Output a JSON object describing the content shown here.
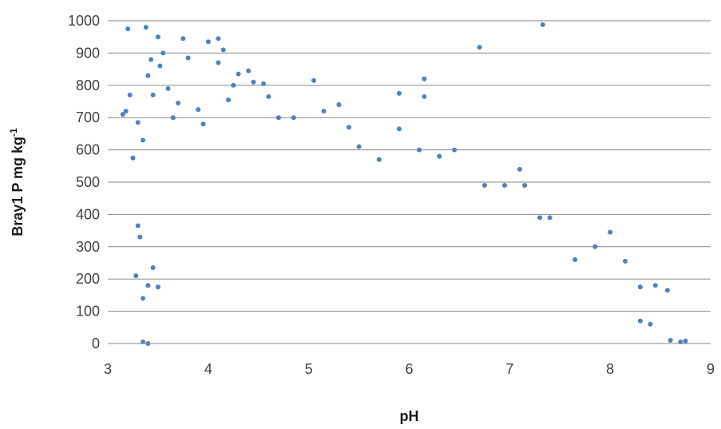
{
  "chart_data": {
    "type": "scatter",
    "title": "",
    "xlabel": "pH",
    "ylabel": {
      "main": "Bray1 P mg kg",
      "superscript": "-1"
    },
    "xlim": [
      3,
      9
    ],
    "ylim": [
      0,
      1000
    ],
    "xticks": [
      "3",
      "4",
      "5",
      "6",
      "7",
      "8",
      "9"
    ],
    "yticks": [
      "0",
      "100",
      "200",
      "300",
      "400",
      "500",
      "600",
      "700",
      "800",
      "900",
      "1000"
    ],
    "grid": {
      "horizontal": true,
      "vertical": false
    },
    "legend": "none",
    "marker_color": "#4f81bd",
    "series": [
      {
        "points": [
          [
            3.15,
            710
          ],
          [
            3.2,
            975
          ],
          [
            3.38,
            980
          ],
          [
            3.3,
            685
          ],
          [
            3.25,
            575
          ],
          [
            3.35,
            630
          ],
          [
            3.43,
            880
          ],
          [
            3.5,
            950
          ],
          [
            3.52,
            860
          ],
          [
            3.6,
            790
          ],
          [
            3.75,
            945
          ],
          [
            3.8,
            885
          ],
          [
            3.4,
            830
          ],
          [
            3.55,
            900
          ],
          [
            3.45,
            770
          ],
          [
            3.65,
            700
          ],
          [
            3.7,
            745
          ],
          [
            3.9,
            725
          ],
          [
            3.95,
            680
          ],
          [
            4.0,
            935
          ],
          [
            4.1,
            945
          ],
          [
            4.15,
            910
          ],
          [
            4.1,
            870
          ],
          [
            4.2,
            755
          ],
          [
            4.25,
            800
          ],
          [
            4.3,
            835
          ],
          [
            4.4,
            845
          ],
          [
            4.45,
            810
          ],
          [
            4.55,
            805
          ],
          [
            4.6,
            765
          ],
          [
            4.7,
            700
          ],
          [
            4.85,
            700
          ],
          [
            5.05,
            815
          ],
          [
            5.15,
            720
          ],
          [
            5.3,
            740
          ],
          [
            5.4,
            670
          ],
          [
            5.5,
            610
          ],
          [
            5.7,
            570
          ],
          [
            5.9,
            775
          ],
          [
            5.9,
            665
          ],
          [
            6.15,
            820
          ],
          [
            6.15,
            765
          ],
          [
            6.1,
            600
          ],
          [
            6.3,
            580
          ],
          [
            6.45,
            600
          ],
          [
            6.7,
            918
          ],
          [
            7.33,
            988
          ],
          [
            6.75,
            490
          ],
          [
            6.95,
            490
          ],
          [
            7.1,
            540
          ],
          [
            7.15,
            490
          ],
          [
            7.3,
            390
          ],
          [
            7.4,
            390
          ],
          [
            7.65,
            260
          ],
          [
            7.85,
            300
          ],
          [
            8.0,
            345
          ],
          [
            8.15,
            255
          ],
          [
            8.3,
            175
          ],
          [
            8.45,
            180
          ],
          [
            8.57,
            165
          ],
          [
            8.4,
            60
          ],
          [
            8.6,
            10
          ],
          [
            8.75,
            8
          ],
          [
            8.7,
            5
          ],
          [
            8.3,
            70
          ],
          [
            3.35,
            5
          ],
          [
            3.4,
            0
          ],
          [
            3.3,
            365
          ],
          [
            3.28,
            210
          ],
          [
            3.35,
            140
          ],
          [
            3.4,
            180
          ],
          [
            3.5,
            175
          ],
          [
            3.45,
            235
          ],
          [
            3.32,
            330
          ],
          [
            3.22,
            770
          ],
          [
            3.18,
            720
          ]
        ]
      }
    ]
  }
}
